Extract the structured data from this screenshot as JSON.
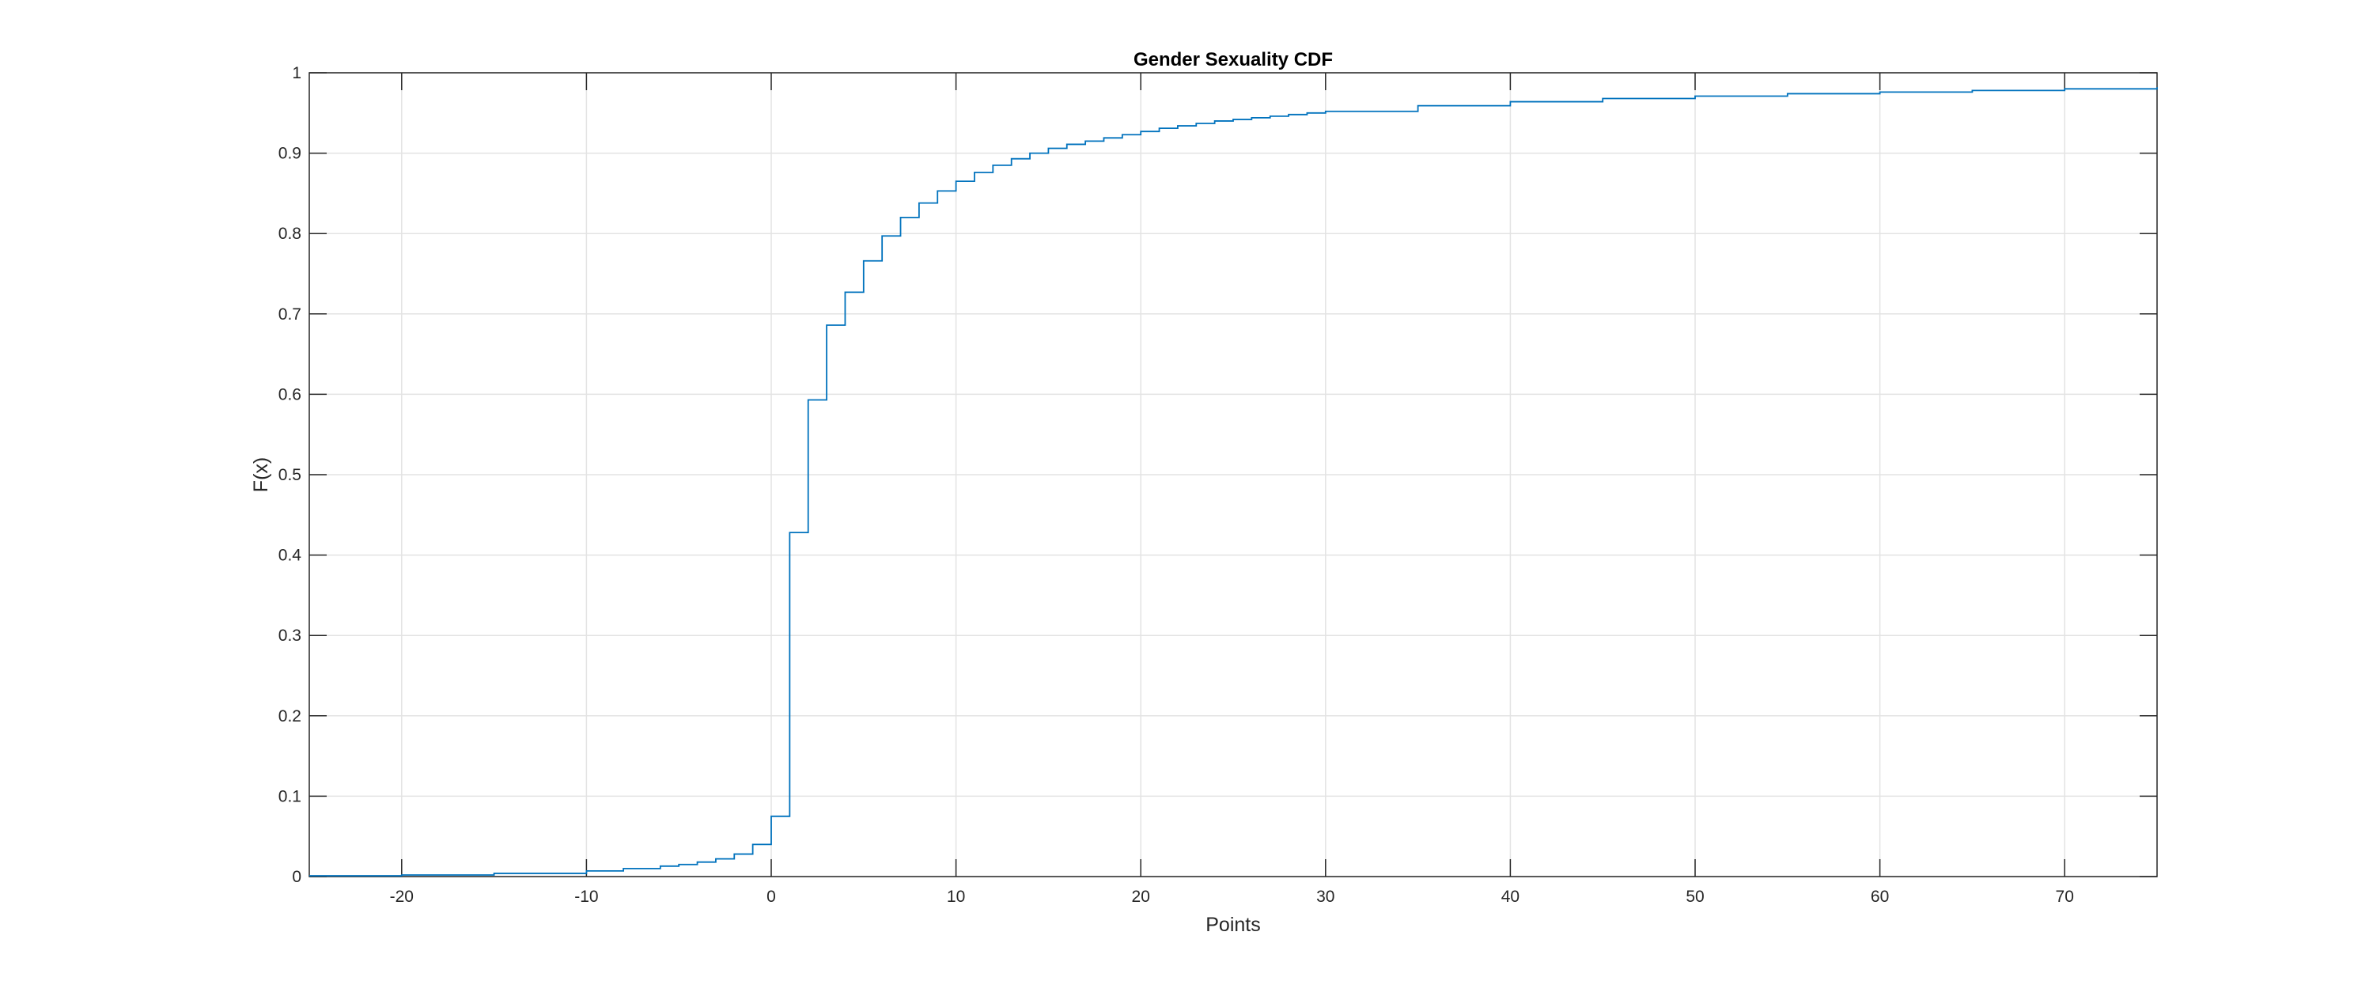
{
  "chart_data": {
    "type": "line",
    "title": "Gender Sexuality CDF",
    "xlabel": "Points",
    "ylabel": "F(x)",
    "xlim": [
      -25,
      75
    ],
    "ylim": [
      0,
      1
    ],
    "xticks": [
      -20,
      -10,
      0,
      10,
      20,
      30,
      40,
      50,
      60,
      70
    ],
    "yticks": [
      0,
      0.1,
      0.2,
      0.3,
      0.4,
      0.5,
      0.6,
      0.7,
      0.8,
      0.9,
      1
    ],
    "grid": true,
    "line_color": "#0072BD",
    "series": [
      {
        "step": true,
        "x": [
          -25,
          -20,
          -15,
          -10,
          -8,
          -6,
          -5,
          -4,
          -3,
          -2,
          -1,
          0,
          1,
          2,
          3,
          4,
          5,
          6,
          7,
          8,
          9,
          10,
          11,
          12,
          13,
          14,
          15,
          16,
          17,
          18,
          19,
          20,
          21,
          22,
          23,
          24,
          25,
          26,
          27,
          28,
          29,
          30,
          35,
          40,
          45,
          50,
          55,
          60,
          65,
          70,
          75
        ],
        "y": [
          0.001,
          0.002,
          0.004,
          0.007,
          0.01,
          0.013,
          0.015,
          0.018,
          0.022,
          0.028,
          0.04,
          0.075,
          0.428,
          0.593,
          0.686,
          0.727,
          0.766,
          0.797,
          0.82,
          0.838,
          0.853,
          0.865,
          0.876,
          0.885,
          0.893,
          0.9,
          0.906,
          0.911,
          0.915,
          0.919,
          0.923,
          0.927,
          0.931,
          0.934,
          0.937,
          0.94,
          0.942,
          0.944,
          0.946,
          0.948,
          0.95,
          0.952,
          0.959,
          0.964,
          0.968,
          0.971,
          0.974,
          0.976,
          0.978,
          0.98,
          0.982
        ]
      }
    ]
  }
}
